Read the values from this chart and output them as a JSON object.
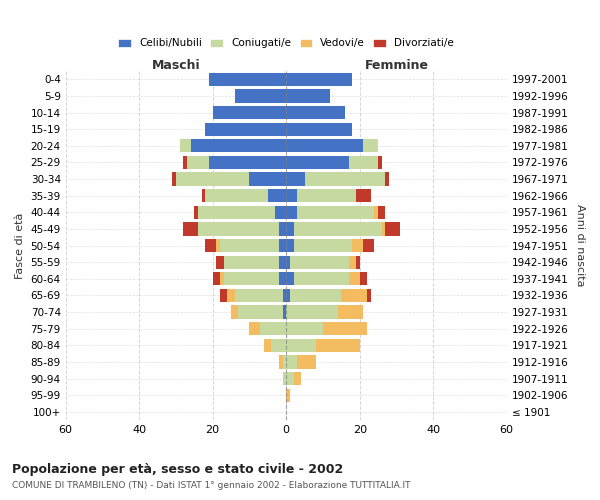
{
  "age_groups": [
    "0-4",
    "5-9",
    "10-14",
    "15-19",
    "20-24",
    "25-29",
    "30-34",
    "35-39",
    "40-44",
    "45-49",
    "50-54",
    "55-59",
    "60-64",
    "65-69",
    "70-74",
    "75-79",
    "80-84",
    "85-89",
    "90-94",
    "95-99",
    "100+"
  ],
  "birth_years": [
    "1997-2001",
    "1992-1996",
    "1987-1991",
    "1982-1986",
    "1977-1981",
    "1972-1976",
    "1967-1971",
    "1962-1966",
    "1957-1961",
    "1952-1956",
    "1947-1951",
    "1942-1946",
    "1937-1941",
    "1932-1936",
    "1927-1931",
    "1922-1926",
    "1917-1921",
    "1912-1916",
    "1907-1911",
    "1902-1906",
    "≤ 1901"
  ],
  "male": {
    "celibi": [
      21,
      14,
      20,
      22,
      26,
      21,
      10,
      5,
      3,
      2,
      2,
      2,
      2,
      1,
      1,
      0,
      0,
      0,
      0,
      0,
      0
    ],
    "coniugati": [
      0,
      0,
      0,
      0,
      3,
      6,
      20,
      17,
      21,
      22,
      16,
      15,
      15,
      13,
      12,
      7,
      4,
      1,
      1,
      0,
      0
    ],
    "vedovi": [
      0,
      0,
      0,
      0,
      0,
      0,
      0,
      0,
      0,
      0,
      1,
      0,
      1,
      2,
      2,
      3,
      2,
      1,
      0,
      0,
      0
    ],
    "divorziati": [
      0,
      0,
      0,
      0,
      0,
      1,
      1,
      1,
      1,
      4,
      3,
      2,
      2,
      2,
      0,
      0,
      0,
      0,
      0,
      0,
      0
    ]
  },
  "female": {
    "nubili": [
      18,
      12,
      16,
      18,
      21,
      17,
      5,
      3,
      3,
      2,
      2,
      1,
      2,
      1,
      0,
      0,
      0,
      0,
      0,
      0,
      0
    ],
    "coniugate": [
      0,
      0,
      0,
      0,
      4,
      8,
      22,
      16,
      21,
      24,
      16,
      16,
      15,
      14,
      14,
      10,
      8,
      3,
      2,
      0,
      0
    ],
    "vedove": [
      0,
      0,
      0,
      0,
      0,
      0,
      0,
      0,
      1,
      1,
      3,
      2,
      3,
      7,
      7,
      12,
      12,
      5,
      2,
      1,
      0
    ],
    "divorziate": [
      0,
      0,
      0,
      0,
      0,
      1,
      1,
      4,
      2,
      4,
      3,
      1,
      2,
      1,
      0,
      0,
      0,
      0,
      0,
      0,
      0
    ]
  },
  "colors": {
    "celibi": "#4472c4",
    "coniugati": "#c5d9a0",
    "vedovi": "#f4bc60",
    "divorziati": "#c0392b"
  },
  "title": "Popolazione per età, sesso e stato civile - 2002",
  "subtitle": "COMUNE DI TRAMBILENO (TN) - Dati ISTAT 1° gennaio 2002 - Elaborazione TUTTITALIA.IT",
  "xlabel_left": "Maschi",
  "xlabel_right": "Femmine",
  "ylabel_left": "Fasce di età",
  "ylabel_right": "Anni di nascita",
  "xlim": 60,
  "legend_labels": [
    "Celibi/Nubili",
    "Coniugati/e",
    "Vedovi/e",
    "Divorziati/e"
  ],
  "background_color": "#ffffff",
  "grid_color": "#cccccc"
}
